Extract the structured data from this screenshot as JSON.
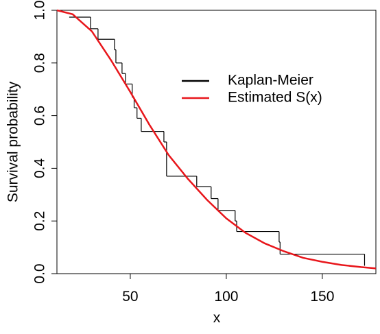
{
  "chart_data": {
    "type": "line",
    "xlabel": "x",
    "ylabel": "Survival probability",
    "xlim": [
      11.8,
      177.9
    ],
    "ylim": [
      0,
      1
    ],
    "xticks": [
      50,
      100,
      150
    ],
    "yticks": [
      {
        "value": 0,
        "label": "0.0"
      },
      0.2,
      0.4,
      0.6,
      0.8,
      {
        "value": 1,
        "label": "1.0"
      }
    ],
    "legend_position": "right",
    "series": [
      {
        "name": "Kaplan-Meier",
        "color": "#000000",
        "step": true,
        "x": [
          18.2,
          29.3,
          33.2,
          41.8,
          42.5,
          45.7,
          47.5,
          51,
          52,
          53.5,
          55.7,
          67.5,
          68.9,
          84.6,
          92.1,
          95.7,
          104.6,
          105.4,
          127.5,
          128,
          172
        ],
        "values": [
          0.974,
          0.93,
          0.89,
          0.85,
          0.8,
          0.76,
          0.72,
          0.67,
          0.63,
          0.59,
          0.54,
          0.5,
          0.37,
          0.33,
          0.285,
          0.24,
          0.2,
          0.16,
          0.12,
          0.074,
          0.03
        ]
      },
      {
        "name": "Estimated S(x)",
        "color": "#e8161b",
        "x": [
          11.8,
          20,
          30,
          40,
          50,
          60,
          70,
          80,
          90,
          100,
          110,
          120,
          130,
          140,
          150,
          160,
          170,
          177.9
        ],
        "values": [
          1.0,
          0.985,
          0.92,
          0.81,
          0.69,
          0.565,
          0.45,
          0.36,
          0.28,
          0.21,
          0.155,
          0.115,
          0.085,
          0.06,
          0.045,
          0.033,
          0.025,
          0.02
        ]
      }
    ]
  }
}
